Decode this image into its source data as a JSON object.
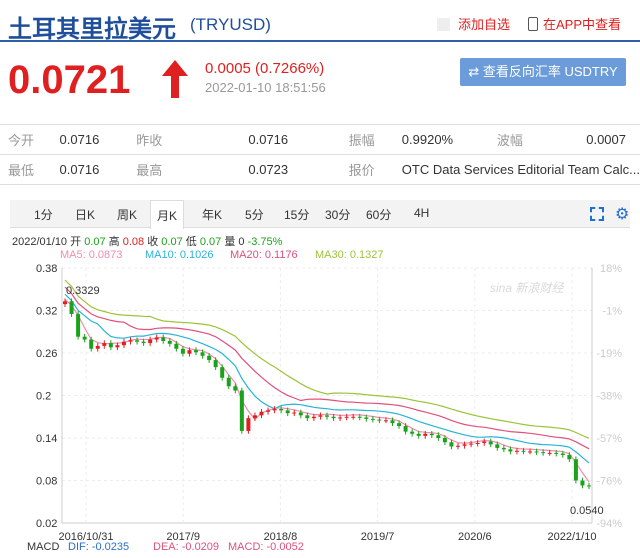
{
  "header": {
    "title": "土耳其里拉美元",
    "code": "(TRYUSD)",
    "add_fav": "添加自选",
    "app_link": "在APP中查看"
  },
  "quote": {
    "price": "0.0721",
    "change": "0.0005 (0.7266%)",
    "time": "2022-01-10 18:51:56",
    "reverse_button": "⇄ 查看反向汇率 USDTRY"
  },
  "stats": [
    [
      {
        "label": "今开",
        "value": "0.0716"
      },
      {
        "label": "昨收",
        "value": "0.0716"
      },
      {
        "label": "振幅",
        "value": "0.9920%"
      },
      {
        "label": "波幅",
        "value": "0.0007"
      }
    ],
    [
      {
        "label": "最低",
        "value": "0.0716"
      },
      {
        "label": "最高",
        "value": "0.0723"
      },
      {
        "label": "报价",
        "value": "OTC Data Services Editorial Team Calc..."
      }
    ]
  ],
  "tabs": [
    "1分",
    "日K",
    "周K",
    "月K",
    "年K",
    "5分",
    "15分",
    "30分",
    "60分",
    "4H"
  ],
  "active_tab": "月K",
  "ohlc_line": {
    "date": "2022/01/10",
    "open_label": "开",
    "open": "0.07",
    "high_label": "高",
    "high": "0.08",
    "close_label": "收",
    "close": "0.07",
    "low_label": "低",
    "low": "0.07",
    "vol_label": "量",
    "vol": "0",
    "pct": "-3.75%"
  },
  "ma_labels": [
    {
      "text": "MA5: 0.0873",
      "color": "#f28bb0"
    },
    {
      "text": "MA10: 0.1026",
      "color": "#2ab3d8"
    },
    {
      "text": "MA20: 0.1176",
      "color": "#e0507a"
    },
    {
      "text": "MA30: 0.1327",
      "color": "#9cc43a"
    }
  ],
  "watermark": "sina 新浪财经",
  "macd": {
    "label": "MACD",
    "dif": "DIF: -0.0235",
    "dea": "DEA: -0.0209",
    "macd": "MACD: -0.0052"
  },
  "chart_data": {
    "type": "candlestick",
    "y_ticks": [
      "0.38",
      "0.32",
      "0.26",
      "0.2",
      "0.14",
      "0.08",
      "0.02"
    ],
    "pct_ticks": [
      "18%",
      "-1%",
      "-19%",
      "-38%",
      "-57%",
      "-76%",
      "-94%"
    ],
    "x_ticks": [
      "2016/10/31",
      "2017/9",
      "2018/8",
      "2019/7",
      "2020/6",
      "2022/1/10"
    ],
    "ylim": [
      0.02,
      0.38
    ],
    "max_label": "0.3329",
    "min_label": "0.0540",
    "colors": {
      "up": "#e02020",
      "down": "#1aa31a",
      "ma5": "#f28bb0",
      "ma10": "#2ab3d8",
      "ma20": "#e0507a",
      "ma30": "#9cc43a"
    },
    "close": [
      0.333,
      0.315,
      0.283,
      0.279,
      0.266,
      0.27,
      0.274,
      0.268,
      0.271,
      0.276,
      0.278,
      0.276,
      0.274,
      0.279,
      0.282,
      0.277,
      0.273,
      0.266,
      0.259,
      0.264,
      0.261,
      0.256,
      0.25,
      0.24,
      0.225,
      0.213,
      0.207,
      0.15,
      0.168,
      0.172,
      0.177,
      0.179,
      0.181,
      0.179,
      0.175,
      0.176,
      0.172,
      0.168,
      0.17,
      0.172,
      0.17,
      0.168,
      0.169,
      0.17,
      0.17,
      0.169,
      0.167,
      0.166,
      0.165,
      0.165,
      0.161,
      0.157,
      0.149,
      0.146,
      0.143,
      0.146,
      0.144,
      0.14,
      0.134,
      0.128,
      0.129,
      0.131,
      0.132,
      0.133,
      0.135,
      0.131,
      0.126,
      0.124,
      0.121,
      0.122,
      0.121,
      0.121,
      0.12,
      0.119,
      0.119,
      0.118,
      0.116,
      0.11,
      0.08,
      0.073,
      0.072
    ]
  }
}
